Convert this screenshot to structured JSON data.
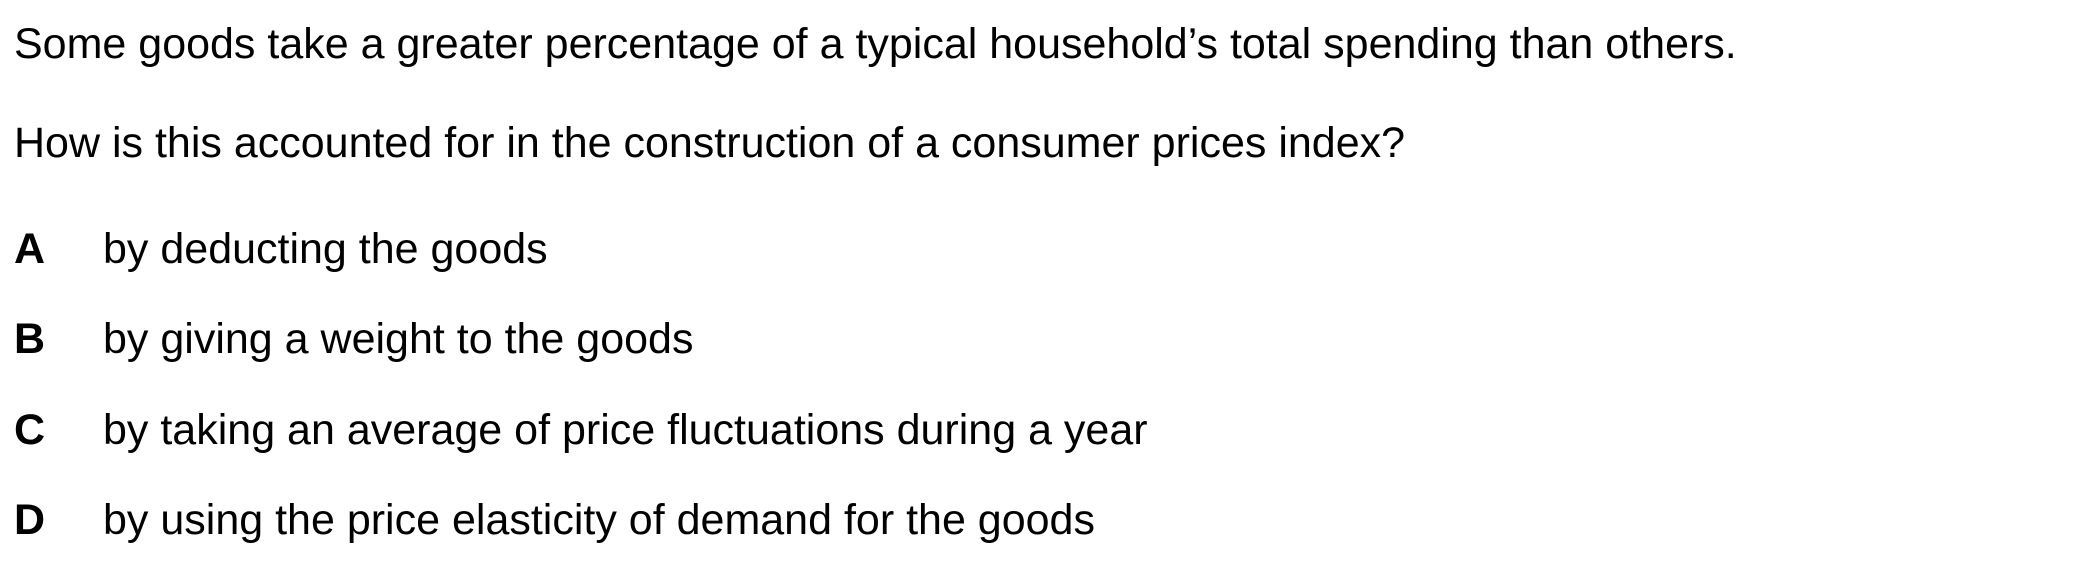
{
  "question": {
    "statement": "Some goods take a greater percentage of a typical household’s total spending than others.",
    "prompt": "How is this accounted for in the construction of a consumer prices index?"
  },
  "options": [
    {
      "letter": "A",
      "text": "by deducting the goods"
    },
    {
      "letter": "B",
      "text": "by giving a weight to the goods"
    },
    {
      "letter": "C",
      "text": "by taking an average of price fluctuations during a year"
    },
    {
      "letter": "D",
      "text": "by using the price elasticity of demand for the goods"
    }
  ]
}
